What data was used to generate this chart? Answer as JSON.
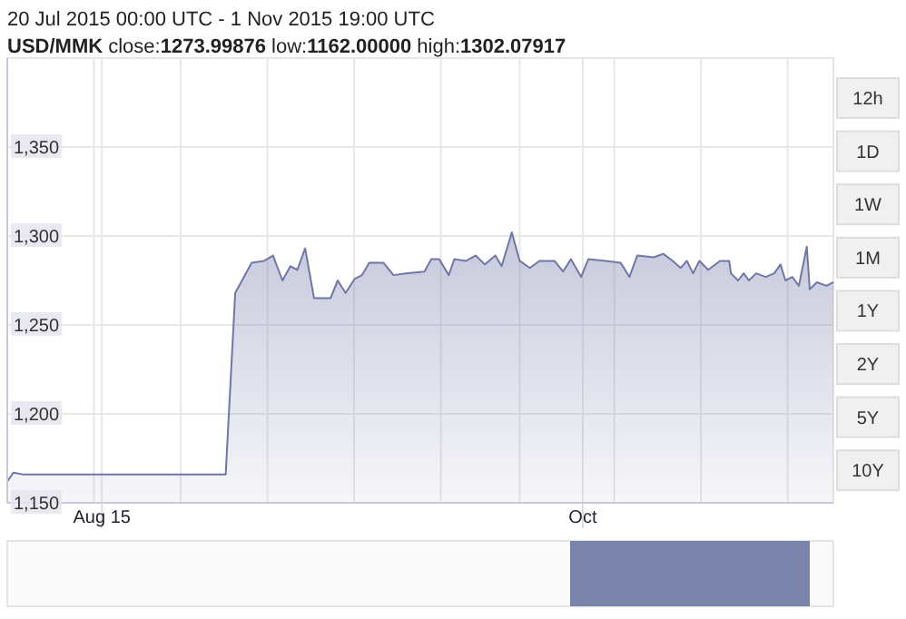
{
  "chart_data": {
    "type": "area",
    "title": "20 Jul 2015 00:00 UTC - 1 Nov 2015 19:00 UTC",
    "subtitle": "USD/MMK close:1273.99876 low:1162.00000 high:1302.07917",
    "annotations": [
      "12h",
      "1D",
      "1W",
      "1M",
      "1Y",
      "2Y",
      "5Y",
      "10Y"
    ],
    "x": [
      "2015-07-20T00:00",
      "2015-07-20T19:00",
      "2015-07-21T22:00",
      "2015-08-16T17:00",
      "2015-08-17T22:00",
      "2015-08-20T00:00",
      "2015-08-21T14:00",
      "2015-08-22T17:00",
      "2015-08-23T22:00",
      "2015-08-24T22:00",
      "2015-08-25T19:00",
      "2015-08-26T19:00",
      "2015-08-27T22:00",
      "2015-08-30T00:00",
      "2015-08-30T22:00",
      "2015-08-31T22:00",
      "2015-09-02T02:00",
      "2015-09-03T00:00",
      "2015-09-03T22:00",
      "2015-09-05T17:00",
      "2015-09-07T00:00",
      "2015-09-08T14:00",
      "2015-09-10T22:00",
      "2015-09-11T19:00",
      "2015-09-12T19:00",
      "2015-09-14T00:00",
      "2015-09-14T17:00",
      "2015-09-16T05:00",
      "2015-09-17T10:00",
      "2015-09-18T14:00",
      "2015-09-19T22:00",
      "2015-09-20T17:00",
      "2015-09-22T00:00",
      "2015-09-23T00:00",
      "2015-09-24T07:00",
      "2015-09-25T12:00",
      "2015-09-27T10:00",
      "2015-09-28T12:00",
      "2015-09-29T12:00",
      "2015-09-30T19:00",
      "2015-10-01T17:00",
      "2015-10-03T22:00",
      "2015-10-05T19:00",
      "2015-10-06T22:00",
      "2015-10-07T22:00",
      "2015-10-10T00:00",
      "2015-10-11T05:00",
      "2015-10-12T10:00",
      "2015-10-13T10:00",
      "2015-10-14T05:00",
      "2015-10-15T00:00",
      "2015-10-15T19:00",
      "2015-10-16T22:00",
      "2015-10-18T10:00",
      "2015-10-19T14:00",
      "2015-10-19T19:00",
      "2015-10-20T17:00",
      "2015-10-21T10:00",
      "2015-10-22T02:00",
      "2015-10-23T00:00",
      "2015-10-24T05:00",
      "2015-10-25T07:00",
      "2015-10-26T02:00",
      "2015-10-26T17:00",
      "2015-10-27T14:00",
      "2015-10-28T10:00",
      "2015-10-29T10:00",
      "2015-10-29T19:00",
      "2015-10-30T17:00",
      "2015-10-31T22:00",
      "2015-11-01T19:00"
    ],
    "series": [
      {
        "color": "#7077a6",
        "values": [
          1162,
          1167,
          1166,
          1166,
          1268,
          1285,
          1286,
          1289,
          1275,
          1283,
          1281,
          1293,
          1265,
          1265,
          1275,
          1268,
          1276,
          1278,
          1285,
          1285,
          1278,
          1279,
          1280,
          1287,
          1287,
          1278,
          1287,
          1286,
          1289,
          1284,
          1289,
          1283,
          1302,
          1286,
          1282,
          1286,
          1286,
          1280,
          1287,
          1277,
          1287,
          1286,
          1285,
          1277,
          1289,
          1288,
          1290,
          1286,
          1282,
          1286,
          1279,
          1286,
          1281,
          1286,
          1286,
          1279,
          1275,
          1279,
          1275,
          1279,
          1277,
          1279,
          1284,
          1275,
          1277,
          1272,
          1294,
          1270,
          1274,
          1272,
          1274
        ]
      }
    ],
    "xlim": [
      "2015-07-20T00:00",
      "2015-11-01T19:00"
    ],
    "xticks": [
      {
        "value": "2015-07-31",
        "label": null
      },
      {
        "value": "2015-08-01",
        "label": "Aug 15"
      },
      {
        "value": "2015-08-11",
        "label": null
      },
      {
        "value": "2015-08-22",
        "label": null
      },
      {
        "value": "2015-09-02",
        "label": null
      },
      {
        "value": "2015-09-13",
        "label": null
      },
      {
        "value": "2015-09-23",
        "label": null
      },
      {
        "value": "2015-10-01",
        "label": "Oct"
      },
      {
        "value": "2015-10-05",
        "label": null
      },
      {
        "value": "2015-10-16",
        "label": null
      },
      {
        "value": "2015-10-27",
        "label": null
      }
    ],
    "ylim": [
      1150,
      1400
    ],
    "yticks": [
      {
        "value": 1150,
        "label": "1,150"
      },
      {
        "value": 1200,
        "label": "1,200"
      },
      {
        "value": 1250,
        "label": "1,250"
      },
      {
        "value": 1300,
        "label": "1,300"
      },
      {
        "value": 1350,
        "label": "1,350"
      }
    ],
    "grid": true
  }
}
